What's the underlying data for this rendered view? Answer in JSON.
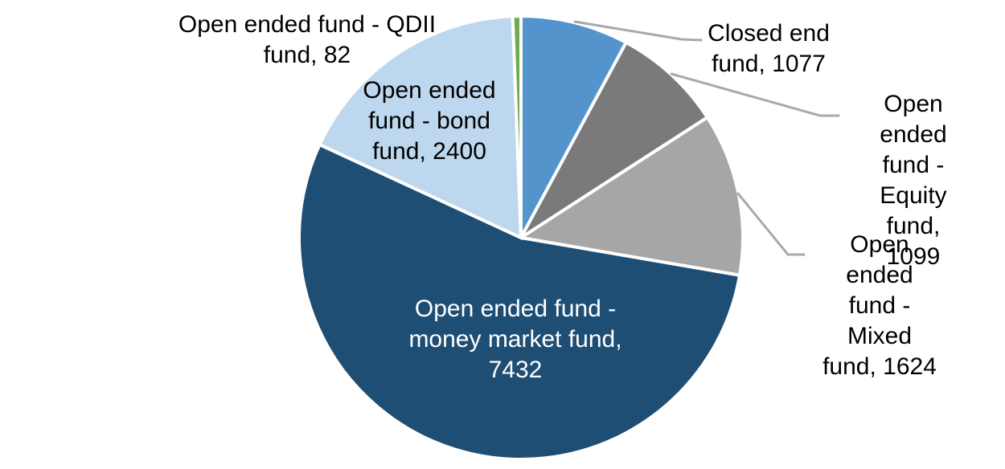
{
  "chart_data": {
    "type": "pie",
    "title": "",
    "categories": [
      "Closed end fund",
      "Open ended fund - Equity fund",
      "Open ended fund - Mixed fund",
      "Open ended fund - money market fund",
      "Open ended fund - bond fund",
      "Open ended fund - QDII fund"
    ],
    "values": [
      1077,
      1099,
      1624,
      7432,
      2400,
      82
    ],
    "colors": [
      "#5494CD",
      "#7A7A7A",
      "#A6A6A6",
      "#1F4E74",
      "#BDD7EE",
      "#6EAC49"
    ],
    "start_angle_deg": 0,
    "direction": "clockwise",
    "slice_border_color": "#FFFFFF",
    "leader_line_color": "#A9A9A9",
    "legend_position": "none",
    "label_format": "category, value"
  },
  "labels": {
    "qdii": [
      "Open ended fund - QDII",
      "fund, 82"
    ],
    "bond": [
      "Open ended",
      "fund - bond",
      "fund, 2400"
    ],
    "money_market": [
      "Open ended fund -",
      "money market fund,",
      "7432"
    ],
    "closed_end": [
      "Closed end",
      "fund, 1077"
    ],
    "equity": [
      "Open ended",
      "fund - Equity",
      "fund, 1099"
    ],
    "mixed": [
      "Open ended",
      "fund - Mixed",
      "fund, 1624"
    ]
  }
}
